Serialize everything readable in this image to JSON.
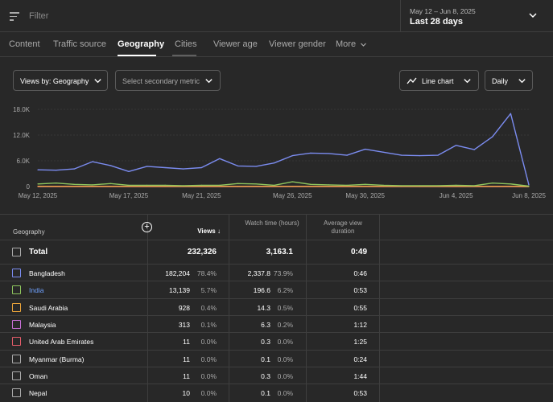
{
  "filter": {
    "placeholder": "Filter"
  },
  "date": {
    "range": "May 12 – Jun 8, 2025",
    "label": "Last 28 days"
  },
  "tabs": [
    "Content",
    "Traffic source",
    "Geography",
    "Cities",
    "Viewer age",
    "Viewer gender",
    "More"
  ],
  "controls": {
    "views_by": "Views by: Geography",
    "secondary": "Select secondary metric",
    "chart_type": "Line chart",
    "interval": "Daily"
  },
  "chart_data": {
    "type": "line",
    "x": [
      "May 12, 2025",
      "May 13",
      "May 14",
      "May 15",
      "May 16",
      "May 17, 2025",
      "May 18",
      "May 19",
      "May 20",
      "May 21, 2025",
      "May 22",
      "May 23",
      "May 24",
      "May 25",
      "May 26, 2025",
      "May 27",
      "May 28",
      "May 29",
      "May 30, 2025",
      "May 31",
      "Jun 1",
      "Jun 2",
      "Jun 3",
      "Jun 4, 2025",
      "Jun 5",
      "Jun 6",
      "Jun 7",
      "Jun 8, 2025"
    ],
    "x_tick_labels": [
      "May 12, 2025",
      "May 17, 2025",
      "May 21, 2025",
      "May 26, 2025",
      "May 30, 2025",
      "Jun 4, 2025",
      "Jun 8, 2025"
    ],
    "y_ticks": [
      "0",
      "6.0K",
      "12.0K",
      "18.0K"
    ],
    "ylim": [
      0,
      18000
    ],
    "series": [
      {
        "name": "Bangladesh",
        "color": "#7b8cf0",
        "values": [
          3900,
          3800,
          4100,
          5800,
          4900,
          3500,
          4700,
          4400,
          4100,
          4400,
          6500,
          4800,
          4700,
          5500,
          7200,
          7800,
          7700,
          7300,
          8700,
          8000,
          7300,
          7200,
          7300,
          9600,
          8600,
          11600,
          17000,
          400
        ]
      },
      {
        "name": "India",
        "color": "#8ec55e",
        "values": [
          600,
          800,
          500,
          400,
          700,
          300,
          300,
          300,
          200,
          300,
          300,
          700,
          600,
          300,
          1100,
          500,
          400,
          300,
          500,
          300,
          200,
          200,
          200,
          300,
          200,
          800,
          600,
          100
        ]
      },
      {
        "name": "Saudi Arabia",
        "color": "#e8a33a",
        "values": [
          50,
          40,
          30,
          40,
          30,
          30,
          40,
          30,
          40,
          30,
          30,
          40,
          50,
          30,
          40,
          30,
          30,
          40,
          30,
          30,
          40,
          30,
          30,
          30,
          40,
          30,
          50,
          0
        ]
      },
      {
        "name": "Malaysia",
        "color": "#c86fd6",
        "values": [
          20,
          10,
          10,
          20,
          10,
          10,
          10,
          20,
          10,
          10,
          10,
          20,
          10,
          10,
          10,
          10,
          20,
          10,
          10,
          10,
          10,
          20,
          10,
          10,
          10,
          10,
          10,
          0
        ]
      },
      {
        "name": "United Arab Emirates",
        "color": "#e45d6a",
        "values": [
          0,
          0,
          0,
          0,
          0,
          0,
          0,
          0,
          0,
          0,
          0,
          0,
          0,
          0,
          0,
          0,
          0,
          0,
          0,
          0,
          0,
          0,
          0,
          0,
          0,
          0,
          0,
          0
        ]
      }
    ]
  },
  "table": {
    "headers": {
      "geography": "Geography",
      "views": "Views",
      "watch_time": "Watch time (hours)",
      "avg_duration": "Average view duration"
    },
    "total": {
      "label": "Total",
      "views": "232,326",
      "watch": "3,163.1",
      "avg": "0:49"
    },
    "rows": [
      {
        "name": "Bangladesh",
        "color": "#7b8cf0",
        "views": "182,204",
        "views_pct": "78.4%",
        "watch": "2,337.8",
        "watch_pct": "73.9%",
        "avg": "0:46"
      },
      {
        "name": "India",
        "color": "#8ec55e",
        "views": "13,139",
        "views_pct": "5.7%",
        "watch": "196.6",
        "watch_pct": "6.2%",
        "avg": "0:53"
      },
      {
        "name": "Saudi Arabia",
        "color": "#e8a33a",
        "views": "928",
        "views_pct": "0.4%",
        "watch": "14.3",
        "watch_pct": "0.5%",
        "avg": "0:55"
      },
      {
        "name": "Malaysia",
        "color": "#c86fd6",
        "views": "313",
        "views_pct": "0.1%",
        "watch": "6.3",
        "watch_pct": "0.2%",
        "avg": "1:12"
      },
      {
        "name": "United Arab Emirates",
        "color": "#e45d6a",
        "views": "11",
        "views_pct": "0.0%",
        "watch": "0.3",
        "watch_pct": "0.0%",
        "avg": "1:25"
      },
      {
        "name": "Myanmar (Burma)",
        "color": "#aaaaaa",
        "views": "11",
        "views_pct": "0.0%",
        "watch": "0.1",
        "watch_pct": "0.0%",
        "avg": "0:24"
      },
      {
        "name": "Oman",
        "color": "#aaaaaa",
        "views": "11",
        "views_pct": "0.0%",
        "watch": "0.3",
        "watch_pct": "0.0%",
        "avg": "1:44"
      },
      {
        "name": "Nepal",
        "color": "#aaaaaa",
        "views": "10",
        "views_pct": "0.0%",
        "watch": "0.1",
        "watch_pct": "0.0%",
        "avg": "0:53"
      }
    ]
  }
}
